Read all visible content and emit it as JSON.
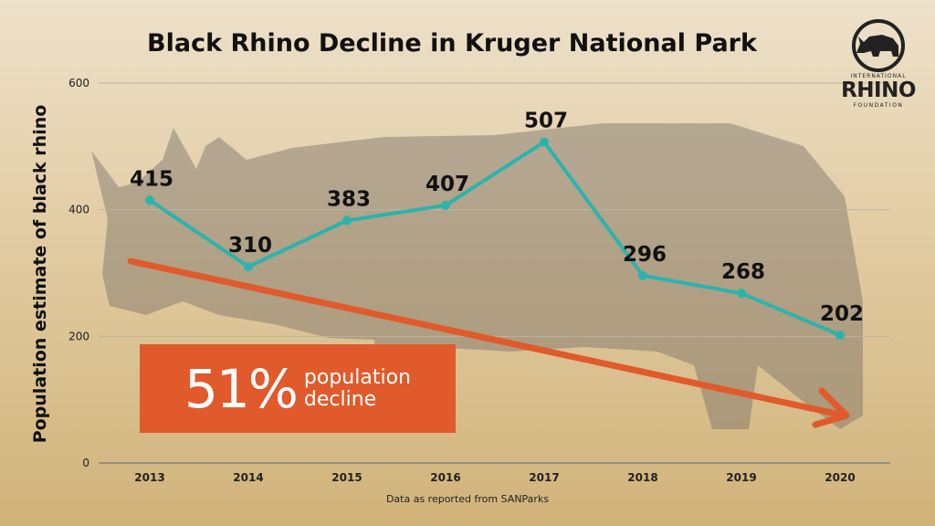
{
  "title": "Black Rhino Decline in Kruger National Park",
  "source_note": "Data as reported from SANParks",
  "callout": {
    "percent": "51%",
    "text_line1": "population",
    "text_line2": "decline"
  },
  "logo": {
    "top": "INTERNATIONAL",
    "main": "RHINO",
    "bottom": "FOUNDATION",
    "icon": "rhino-icon"
  },
  "colors": {
    "line": "#2bb3ad",
    "arrow": "#e05a2b",
    "callout": "#e05a2b"
  },
  "chart_data": {
    "type": "line",
    "title": "Black Rhino Decline in Kruger National Park",
    "xlabel": "",
    "ylabel": "Population estimate of black rhino",
    "categories": [
      "2013",
      "2014",
      "2015",
      "2016",
      "2017",
      "2018",
      "2019",
      "2020"
    ],
    "series": [
      {
        "values": [
          415,
          310,
          383,
          407,
          507,
          296,
          268,
          202
        ]
      }
    ],
    "data_labels": [
      "415",
      "310",
      "383",
      "407",
      "507",
      "296",
      "268",
      "202"
    ],
    "ylim": [
      0,
      600
    ],
    "yticks": [
      0,
      200,
      400,
      600
    ],
    "grid": true,
    "legend": "none"
  }
}
